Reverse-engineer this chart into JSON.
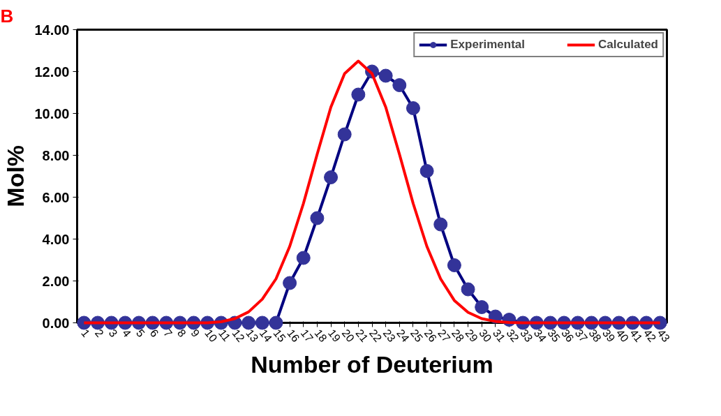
{
  "chart_data": {
    "type": "line",
    "xlabel": "Number of Deuterium",
    "ylabel": "Mol%",
    "annotations": [
      "B"
    ],
    "categories": [
      "1",
      "2",
      "3",
      "4",
      "5",
      "6",
      "7",
      "8",
      "9",
      "10",
      "11",
      "12",
      "13",
      "14",
      "15",
      "16",
      "17",
      "18",
      "19",
      "20",
      "21",
      "22",
      "23",
      "24",
      "25",
      "26",
      "27",
      "28",
      "29",
      "30",
      "31",
      "32",
      "33",
      "34",
      "35",
      "36",
      "37",
      "38",
      "39",
      "40",
      "41",
      "42",
      "43"
    ],
    "series": [
      {
        "name": "Experimental",
        "color": "#000080",
        "marker": "circle",
        "values": [
          0,
          0,
          0,
          0,
          0,
          0,
          0,
          0,
          0,
          0,
          0,
          0,
          0,
          0,
          0,
          1.9,
          3.1,
          5.0,
          6.95,
          9.0,
          10.9,
          12.0,
          11.8,
          11.35,
          10.25,
          7.25,
          4.7,
          2.75,
          1.6,
          0.75,
          0.3,
          0.15,
          0,
          0,
          0,
          0,
          0,
          0,
          0,
          0,
          0,
          0,
          0
        ]
      },
      {
        "name": "Calculated",
        "color": "#ff0000",
        "marker": "none",
        "values": [
          0,
          0,
          0,
          0,
          0,
          0,
          0,
          0,
          0,
          0,
          0.05,
          0.2,
          0.52,
          1.13,
          2.1,
          3.65,
          5.7,
          8.05,
          10.3,
          11.9,
          12.5,
          11.9,
          10.3,
          8.05,
          5.7,
          3.65,
          2.1,
          1.07,
          0.5,
          0.2,
          0.07,
          0.02,
          0,
          0,
          0,
          0,
          0,
          0,
          0,
          0,
          0,
          0,
          0
        ]
      }
    ],
    "ylim": [
      0,
      14
    ],
    "yticks": [
      {
        "value": 0,
        "label": "0.00"
      },
      {
        "value": 2,
        "label": "2.00"
      },
      {
        "value": 4,
        "label": "4.00"
      },
      {
        "value": 6,
        "label": "6.00"
      },
      {
        "value": 8,
        "label": "8.00"
      },
      {
        "value": 10,
        "label": "10.00"
      },
      {
        "value": 12,
        "label": "12.00"
      },
      {
        "value": 14,
        "label": "14.00"
      }
    ],
    "grid": false,
    "legend": "top right"
  }
}
